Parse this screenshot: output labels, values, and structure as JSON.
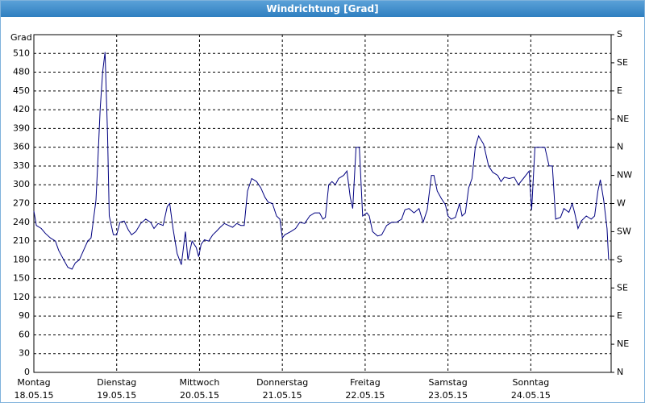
{
  "chart_data": {
    "type": "line",
    "title": "Windrichtung [Grad]",
    "y_label": "Grad",
    "xlim": [
      0,
      6.97
    ],
    "xticks": [
      {
        "value": 0,
        "label": [
          "Montag",
          "18.05.15"
        ]
      },
      {
        "value": 1,
        "label": [
          "Dienstag",
          "19.05.15"
        ]
      },
      {
        "value": 2,
        "label": [
          "Mittwoch",
          "20.05.15"
        ]
      },
      {
        "value": 3,
        "label": [
          "Donnerstag",
          "21.05.15"
        ]
      },
      {
        "value": 4,
        "label": [
          "Freitag",
          "22.05.15"
        ]
      },
      {
        "value": 5,
        "label": [
          "Samstag",
          "23.05.15"
        ]
      },
      {
        "value": 6,
        "label": [
          "Sonntag",
          "24.05.15"
        ]
      }
    ],
    "ylim": [
      0,
      540
    ],
    "yticks": [
      0,
      30,
      60,
      90,
      120,
      150,
      180,
      210,
      240,
      270,
      300,
      330,
      360,
      390,
      420,
      450,
      480,
      510
    ],
    "y2lim": [
      0,
      540
    ],
    "y2ticks": [
      {
        "value": 0,
        "label": "N"
      },
      {
        "value": 45,
        "label": "NE"
      },
      {
        "value": 90,
        "label": "E"
      },
      {
        "value": 135,
        "label": "SE"
      },
      {
        "value": 180,
        "label": "S"
      },
      {
        "value": 225,
        "label": "SW"
      },
      {
        "value": 270,
        "label": "W"
      },
      {
        "value": 315,
        "label": "NW"
      },
      {
        "value": 360,
        "label": "N"
      },
      {
        "value": 405,
        "label": "NE"
      },
      {
        "value": 450,
        "label": "E"
      },
      {
        "value": 495,
        "label": "SE"
      },
      {
        "value": 540,
        "label": "S"
      }
    ],
    "grid": true,
    "series": [
      {
        "color": "#000080",
        "x": [
          0,
          0.03,
          0.09,
          0.14,
          0.2,
          0.26,
          0.3,
          0.36,
          0.41,
          0.46,
          0.5,
          0.55,
          0.6,
          0.65,
          0.69,
          0.72,
          0.75,
          0.77,
          0.8,
          0.83,
          0.86,
          0.89,
          0.91,
          0.96,
          1.0,
          1.04,
          1.09,
          1.14,
          1.18,
          1.23,
          1.29,
          1.35,
          1.41,
          1.45,
          1.5,
          1.56,
          1.61,
          1.64,
          1.68,
          1.73,
          1.78,
          1.83,
          1.86,
          1.91,
          1.96,
          1.99,
          2.02,
          2.06,
          2.11,
          2.16,
          2.2,
          2.25,
          2.3,
          2.35,
          2.4,
          2.45,
          2.5,
          2.54,
          2.58,
          2.63,
          2.69,
          2.74,
          2.79,
          2.83,
          2.88,
          2.93,
          2.97,
          3.0,
          3.03,
          3.1,
          3.16,
          3.21,
          3.27,
          3.33,
          3.39,
          3.45,
          3.49,
          3.52,
          3.56,
          3.6,
          3.64,
          3.68,
          3.74,
          3.78,
          3.82,
          3.85,
          3.89,
          3.93,
          3.97,
          4.02,
          4.05,
          4.09,
          4.15,
          4.2,
          4.26,
          4.32,
          4.38,
          4.44,
          4.48,
          4.53,
          4.59,
          4.65,
          4.7,
          4.75,
          4.8,
          4.83,
          4.87,
          4.92,
          4.97,
          5.0,
          5.04,
          5.09,
          5.14,
          5.17,
          5.21,
          5.25,
          5.29,
          5.33,
          5.37,
          5.43,
          5.49,
          5.54,
          5.6,
          5.64,
          5.68,
          5.74,
          5.8,
          5.85,
          5.91,
          5.98,
          6.01,
          6.05,
          6.11,
          6.17,
          6.22,
          6.26,
          6.3,
          6.36,
          6.4,
          6.46,
          6.5,
          6.53,
          6.57,
          6.61,
          6.67,
          6.73,
          6.77,
          6.81,
          6.84,
          6.88,
          6.92,
          6.94
        ],
        "values": [
          258,
          235,
          230,
          222,
          215,
          210,
          195,
          180,
          168,
          165,
          175,
          180,
          195,
          210,
          215,
          245,
          275,
          330,
          420,
          480,
          512,
          380,
          250,
          220,
          220,
          240,
          242,
          228,
          220,
          225,
          238,
          245,
          240,
          230,
          238,
          235,
          265,
          270,
          230,
          190,
          172,
          225,
          180,
          210,
          200,
          185,
          205,
          212,
          210,
          220,
          225,
          232,
          238,
          235,
          232,
          238,
          235,
          235,
          290,
          310,
          305,
          295,
          280,
          272,
          270,
          250,
          245,
          215,
          220,
          225,
          230,
          240,
          238,
          250,
          255,
          255,
          245,
          248,
          300,
          305,
          300,
          310,
          315,
          322,
          280,
          262,
          360,
          360,
          250,
          255,
          250,
          225,
          218,
          220,
          235,
          240,
          240,
          245,
          260,
          262,
          255,
          262,
          240,
          260,
          315,
          315,
          290,
          278,
          268,
          250,
          245,
          248,
          270,
          250,
          255,
          295,
          310,
          360,
          378,
          365,
          330,
          320,
          315,
          305,
          312,
          310,
          312,
          300,
          310,
          322,
          260,
          360,
          360,
          360,
          330,
          330,
          245,
          248,
          262,
          256,
          270,
          255,
          230,
          242,
          250,
          245,
          250,
          290,
          308,
          275,
          230,
          180
        ]
      }
    ]
  }
}
